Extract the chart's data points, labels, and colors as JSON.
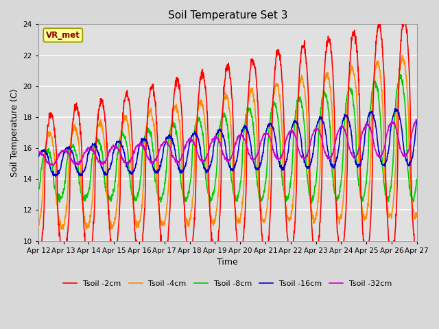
{
  "title": "Soil Temperature Set 3",
  "xlabel": "Time",
  "ylabel": "Soil Temperature (C)",
  "ylim": [
    10,
    24
  ],
  "yticks": [
    10,
    12,
    14,
    16,
    18,
    20,
    22,
    24
  ],
  "x_tick_labels": [
    "Apr 12",
    "Apr 13",
    "Apr 14",
    "Apr 15",
    "Apr 16",
    "Apr 17",
    "Apr 18",
    "Apr 19",
    "Apr 20",
    "Apr 21",
    "Apr 22",
    "Apr 23",
    "Apr 24",
    "Apr 25",
    "Apr 26",
    "Apr 27"
  ],
  "series_colors": [
    "#FF0000",
    "#FF8C00",
    "#00CC00",
    "#0000CC",
    "#CC00CC"
  ],
  "series_labels": [
    "Tsoil -2cm",
    "Tsoil -4cm",
    "Tsoil -8cm",
    "Tsoil -16cm",
    "Tsoil -32cm"
  ],
  "line_width": 1.2,
  "fig_bg_color": "#D8D8D8",
  "plot_bg_color": "#E0E0E0",
  "annotation_text": "VR_met",
  "annotation_box_color": "#FFFF99",
  "annotation_text_color": "#8B0000",
  "annotation_edge_color": "#999900"
}
